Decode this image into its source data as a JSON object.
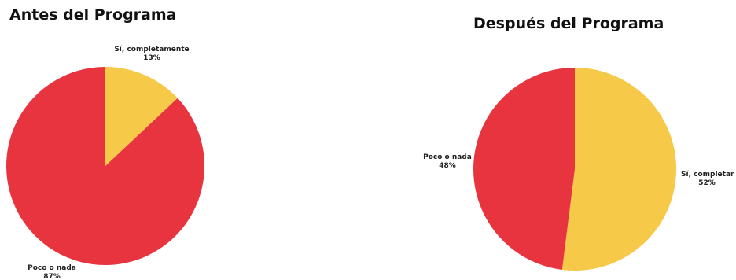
{
  "colors": {
    "poco_o_nada": "#e8343f",
    "si_completamente": "#f7c948"
  },
  "chart_data": [
    {
      "type": "pie",
      "title": "Antes del Programa",
      "slices": [
        {
          "label": "Sí, completamente",
          "value": 13,
          "value_label": "13%",
          "color": "#f7c948"
        },
        {
          "label": "Poco o nada",
          "value": 87,
          "value_label": "87%",
          "color": "#e8343f"
        }
      ],
      "start_angle_deg": 0,
      "direction": "clockwise",
      "legend": "none"
    },
    {
      "type": "pie",
      "title": "Después del Programa",
      "slices": [
        {
          "label": "Sí, completar",
          "value": 52,
          "value_label": "52%",
          "color": "#f7c948"
        },
        {
          "label": "Poco o nada",
          "value": 48,
          "value_label": "48%",
          "color": "#e8343f"
        }
      ],
      "start_angle_deg": 0,
      "direction": "clockwise",
      "legend": "none"
    }
  ]
}
